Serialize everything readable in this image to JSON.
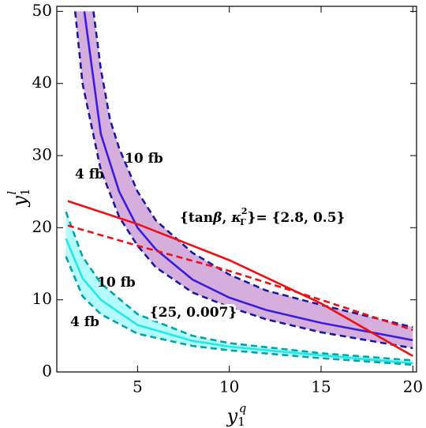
{
  "chart_data": {
    "type": "line",
    "x_label": {
      "base": "y",
      "sub": "1",
      "sup": "q"
    },
    "y_label": {
      "base": "y",
      "sub": "1",
      "sup": "l"
    },
    "xlim": [
      0.6,
      20.2
    ],
    "ylim": [
      0,
      50.7
    ],
    "xticks": [
      5,
      10,
      15,
      20
    ],
    "yticks": [
      0,
      10,
      20,
      30,
      40,
      50
    ],
    "bands": [
      {
        "fill": "#d6aedd",
        "upper": {
          "color": "#1a1a9c",
          "dash": true,
          "x": [
            2.6,
            3,
            3.5,
            4,
            5,
            6,
            8,
            10,
            12,
            15,
            20
          ],
          "values": [
            50,
            42,
            35,
            31,
            25,
            21,
            16.5,
            13.5,
            11.3,
            9.3,
            6.2
          ]
        },
        "center": {
          "color": "#3a1edc",
          "dash": false,
          "x": [
            2.1,
            3,
            4,
            5,
            6,
            8,
            10,
            12,
            15,
            20
          ],
          "values": [
            50,
            33,
            25,
            20,
            17,
            12.8,
            10.3,
            8.6,
            6.8,
            4.4
          ]
        },
        "lower": {
          "color": "#1a1a9c",
          "dash": true,
          "x": [
            1.6,
            2,
            3,
            4,
            5,
            6,
            8,
            10,
            12,
            15,
            20
          ],
          "values": [
            50,
            40,
            28,
            21.5,
            17.5,
            14.5,
            11,
            9,
            7.3,
            5.5,
            3.3
          ]
        }
      },
      {
        "fill": "#b4fbfb",
        "upper": {
          "color": "#00a5a5",
          "dash": true,
          "x": [
            1.1,
            2,
            3,
            5,
            8,
            10,
            15,
            20
          ],
          "values": [
            22.2,
            16,
            12.3,
            8,
            5,
            4,
            2.6,
            1.6
          ]
        },
        "center": {
          "color": "#22e8e8",
          "dash": false,
          "x": [
            1.1,
            2,
            3,
            5,
            8,
            10,
            15,
            20
          ],
          "values": [
            18.5,
            13,
            10,
            6.5,
            4.3,
            3.5,
            2.3,
            1.2
          ]
        },
        "lower": {
          "color": "#00a5a5",
          "dash": true,
          "x": [
            1.1,
            2,
            3,
            5,
            8,
            10,
            15,
            20
          ],
          "values": [
            16,
            10.5,
            8,
            5.3,
            3.6,
            3,
            1.9,
            1.0
          ]
        }
      }
    ],
    "lines": [
      {
        "color": "#ee1111",
        "dash": false,
        "x": [
          1.2,
          5,
          10,
          15,
          20
        ],
        "values": [
          23.7,
          20.5,
          15.5,
          9.5,
          2.2
        ]
      },
      {
        "color": "#ee1111",
        "dash": true,
        "x": [
          1.2,
          5,
          10,
          15,
          20
        ],
        "values": [
          20.3,
          17.5,
          14,
          10,
          5.8
        ]
      }
    ],
    "annotations": [
      {
        "parts": [
          "10 fb"
        ]
      },
      {
        "parts": [
          "4 fb"
        ]
      },
      {
        "parts": [
          "{tan",
          "β",
          ", ",
          "κ",
          "Γ",
          "2",
          "}= {2.8, 0.5}"
        ]
      },
      {
        "parts": [
          "10 fb"
        ]
      },
      {
        "parts": [
          "4 fb"
        ]
      },
      {
        "parts": [
          "{25, 0.007}"
        ]
      }
    ]
  }
}
